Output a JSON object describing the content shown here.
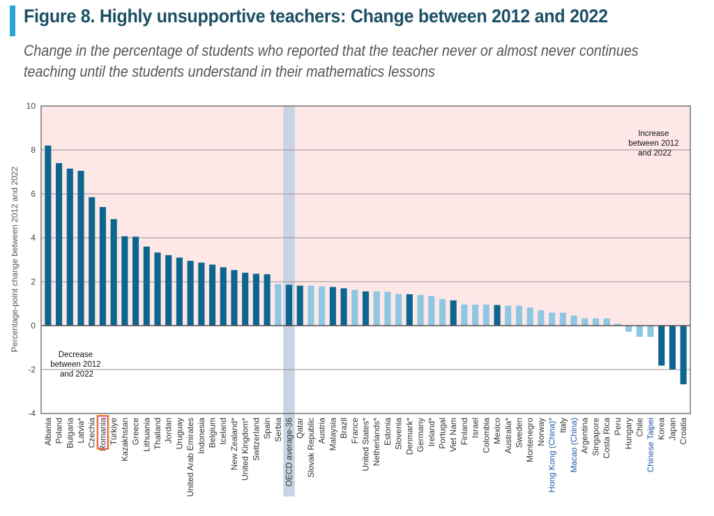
{
  "figure": {
    "title": "Figure 8. Highly unsupportive teachers: Change between 2012 and 2022",
    "subtitle": "Change in the percentage of students who reported that the teacher never or almost never continues teaching until the students understand in their mathematics lessons"
  },
  "colors": {
    "significant": "#0d668f",
    "not_significant": "#8ec7e3",
    "increase_region": "#fde8e7",
    "oecd_highlight": "#c9d3e3",
    "grid": "#9b8f8f",
    "highlight_label": "#1d5aa6",
    "romania_box_outer": "#f0a035",
    "romania_box_inner": "#d6246e",
    "accent_bar": "#2aa3d8"
  },
  "chart_data": {
    "type": "bar",
    "title": "Figure 8. Highly unsupportive teachers: Change between 2012 and 2022",
    "subtitle": "Change in the percentage of students who reported that the teacher never or almost never continues teaching until the students understand in their mathematics lessons",
    "xlabel": "",
    "ylabel": "Percentage-point change between 2012 and 2022",
    "ylim": [
      -4,
      10
    ],
    "yticks": [
      -4,
      -2,
      0,
      2,
      4,
      6,
      8,
      10
    ],
    "grid": true,
    "legend": "none",
    "annotations": [
      {
        "text": "Increase between 2012 and 2022",
        "lines": [
          "Increase",
          "between 2012",
          "and 2022"
        ],
        "position": "top-right"
      },
      {
        "text": "Decrease between 2012 and 2022",
        "lines": [
          "Decrease",
          "between 2012",
          "and 2022"
        ],
        "position": "bottom-left"
      }
    ],
    "highlighted_category": "OECD average-36",
    "boxed_category": "Romania",
    "categories": [
      "Albania",
      "Poland",
      "Bulgaria",
      "Latvia*",
      "Czechia",
      "Romania",
      "Türkiye",
      "Kazakhstan",
      "Greece",
      "Lithuania",
      "Thailand",
      "Jordan",
      "Uruguay",
      "United Arab Emirates",
      "Indonesia",
      "Belgium",
      "Iceland",
      "New Zealand*",
      "United Kingdom*",
      "Switzerland",
      "Spain",
      "Serbia",
      "OECD average-36",
      "Qatar",
      "Slovak Republic",
      "Austria",
      "Malaysia",
      "Brazil",
      "France",
      "United States*",
      "Netherlands*",
      "Estonia",
      "Slovenia",
      "Denmark*",
      "Germany",
      "Ireland*",
      "Portugal",
      "Viet Nam",
      "Finland",
      "Israel",
      "Colombia",
      "Mexico",
      "Australia*",
      "Sweden",
      "Montenegro",
      "Norway",
      "Hong Kong (China)*",
      "Italy",
      "Macao (China)",
      "Argentina",
      "Singapore",
      "Costa Rica",
      "Peru",
      "Hungary",
      "Chile",
      "Chinese Taipei",
      "Korea",
      "Japan",
      "Croatia"
    ],
    "values": [
      8.2,
      7.4,
      7.15,
      7.05,
      5.85,
      5.4,
      4.85,
      4.07,
      4.05,
      3.6,
      3.33,
      3.21,
      3.1,
      2.95,
      2.87,
      2.78,
      2.66,
      2.53,
      2.41,
      2.36,
      2.34,
      1.89,
      1.86,
      1.82,
      1.82,
      1.79,
      1.76,
      1.7,
      1.63,
      1.56,
      1.56,
      1.54,
      1.44,
      1.43,
      1.4,
      1.35,
      1.21,
      1.15,
      0.96,
      0.96,
      0.96,
      0.94,
      0.91,
      0.91,
      0.82,
      0.7,
      0.59,
      0.59,
      0.46,
      0.33,
      0.33,
      0.33,
      0.09,
      -0.28,
      -0.51,
      -0.51,
      -1.82,
      -1.99,
      -2.67
    ],
    "significant": [
      true,
      true,
      true,
      true,
      true,
      true,
      true,
      true,
      true,
      true,
      true,
      true,
      true,
      true,
      true,
      true,
      true,
      true,
      true,
      true,
      true,
      false,
      true,
      true,
      false,
      false,
      true,
      true,
      false,
      true,
      false,
      false,
      false,
      true,
      false,
      false,
      false,
      true,
      false,
      false,
      false,
      true,
      false,
      false,
      false,
      false,
      false,
      false,
      false,
      false,
      false,
      false,
      false,
      false,
      false,
      false,
      true,
      true,
      true
    ],
    "label_highlighted": [
      false,
      false,
      false,
      false,
      false,
      false,
      false,
      false,
      false,
      false,
      false,
      false,
      false,
      false,
      false,
      false,
      false,
      false,
      false,
      false,
      false,
      false,
      false,
      false,
      false,
      false,
      false,
      false,
      false,
      false,
      false,
      false,
      false,
      false,
      false,
      false,
      false,
      false,
      false,
      false,
      false,
      false,
      false,
      false,
      false,
      false,
      true,
      false,
      true,
      false,
      false,
      false,
      false,
      false,
      false,
      true,
      false,
      false,
      false
    ]
  }
}
